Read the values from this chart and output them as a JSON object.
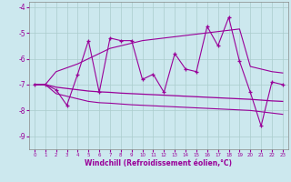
{
  "xlabel": "Windchill (Refroidissement éolien,°C)",
  "background_color": "#cce8ee",
  "line_color": "#990099",
  "grid_color": "#aacccc",
  "x_values": [
    0,
    1,
    2,
    3,
    4,
    5,
    6,
    7,
    8,
    9,
    10,
    11,
    12,
    13,
    14,
    15,
    16,
    17,
    18,
    19,
    20,
    21,
    22,
    23
  ],
  "y_main": [
    -7.0,
    -7.0,
    -7.2,
    -7.8,
    -6.6,
    -5.3,
    -7.3,
    -5.2,
    -5.3,
    -5.3,
    -6.8,
    -6.6,
    -7.3,
    -5.8,
    -6.4,
    -6.5,
    -4.75,
    -5.5,
    -4.4,
    -6.1,
    -7.3,
    -8.6,
    -6.9,
    -7.0
  ],
  "y_upper": [
    -7.0,
    -7.0,
    -6.5,
    -6.35,
    -6.2,
    -6.0,
    -5.8,
    -5.6,
    -5.5,
    -5.4,
    -5.3,
    -5.25,
    -5.2,
    -5.15,
    -5.1,
    -5.05,
    -5.0,
    -4.95,
    -4.9,
    -4.85,
    -6.3,
    -6.4,
    -6.5,
    -6.55
  ],
  "y_lower": [
    -7.0,
    -7.0,
    -7.35,
    -7.45,
    -7.55,
    -7.65,
    -7.7,
    -7.72,
    -7.75,
    -7.78,
    -7.8,
    -7.82,
    -7.84,
    -7.86,
    -7.88,
    -7.9,
    -7.92,
    -7.94,
    -7.96,
    -7.98,
    -8.0,
    -8.05,
    -8.1,
    -8.15
  ],
  "y_mean": [
    -7.0,
    -7.0,
    -7.1,
    -7.15,
    -7.2,
    -7.25,
    -7.28,
    -7.3,
    -7.33,
    -7.35,
    -7.37,
    -7.39,
    -7.41,
    -7.43,
    -7.45,
    -7.47,
    -7.49,
    -7.51,
    -7.53,
    -7.55,
    -7.57,
    -7.6,
    -7.63,
    -7.65
  ],
  "ylim": [
    -9.5,
    -3.8
  ],
  "xlim": [
    -0.5,
    23.5
  ],
  "yticks": [
    -9,
    -8,
    -7,
    -6,
    -5,
    -4
  ],
  "xticks": [
    0,
    1,
    2,
    3,
    4,
    5,
    6,
    7,
    8,
    9,
    10,
    11,
    12,
    13,
    14,
    15,
    16,
    17,
    18,
    19,
    20,
    21,
    22,
    23
  ]
}
